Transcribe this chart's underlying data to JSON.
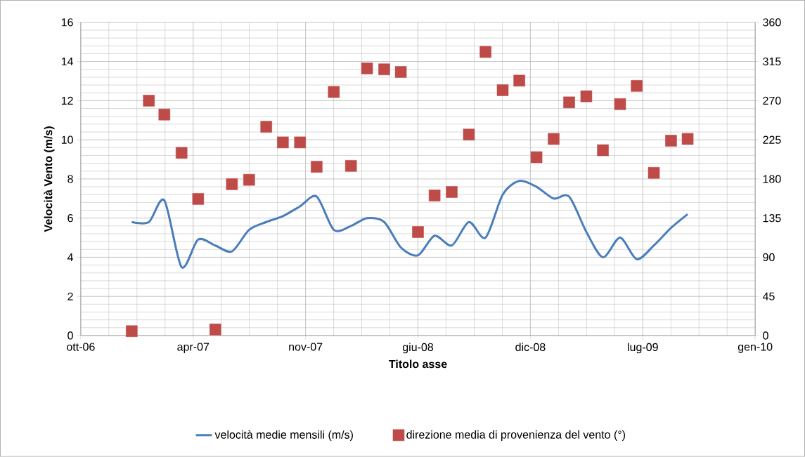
{
  "chart_data": {
    "type": "line",
    "xlabel": "Titolo asse",
    "ylabel": "Velocità Vento (m/s)",
    "x": [
      "2007-01-01",
      "2007-02-01",
      "2007-03-01",
      "2007-04-01",
      "2007-05-01",
      "2007-06-01",
      "2007-07-01",
      "2007-08-01",
      "2007-09-01",
      "2007-10-01",
      "2007-11-01",
      "2007-12-01",
      "2008-01-01",
      "2008-02-01",
      "2008-03-01",
      "2008-04-01",
      "2008-05-01",
      "2008-06-01",
      "2008-07-01",
      "2008-08-01",
      "2008-09-01",
      "2008-10-01",
      "2008-11-01",
      "2008-12-01",
      "2009-01-01",
      "2009-02-01",
      "2009-03-01",
      "2009-04-01",
      "2009-05-01",
      "2009-06-01",
      "2009-07-01",
      "2009-08-01",
      "2009-09-01",
      "2009-10-01"
    ],
    "series": [
      {
        "name": "velocità medie mensili (m/s)",
        "color": "#4a7ebb",
        "marker": "none",
        "values": [
          5.8,
          5.8,
          6.9,
          3.5,
          4.9,
          4.6,
          4.3,
          5.4,
          5.8,
          6.1,
          6.6,
          7.1,
          5.4,
          5.6,
          6.0,
          5.8,
          4.5,
          4.1,
          5.1,
          4.6,
          5.8,
          5.0,
          7.2,
          7.9,
          7.6,
          7.0,
          7.1,
          5.3,
          4.0,
          5.0,
          3.9,
          4.6,
          5.5,
          6.2
        ]
      },
      {
        "name": "direzione media di provenienza del vento (°)",
        "type": "scatter",
        "axis": "y2",
        "color": "#be4b48",
        "marker": "square",
        "values": [
          5,
          270,
          254,
          210,
          157,
          7,
          174,
          179,
          240,
          222,
          222,
          194,
          280,
          195,
          307,
          306,
          303,
          119,
          161,
          165,
          231,
          326,
          282,
          293,
          205,
          226,
          268,
          275,
          213,
          266,
          287,
          187,
          224,
          226
        ]
      }
    ],
    "xlim": [
      "2006-10-01",
      "2010-01-31"
    ],
    "xticks": [
      {
        "value": "2006-10-01",
        "label": "ott-06"
      },
      {
        "value": "2007-04-22",
        "label": "apr-07"
      },
      {
        "value": "2007-11-11",
        "label": "nov-07"
      },
      {
        "value": "2008-06-01",
        "label": "giu-08"
      },
      {
        "value": "2008-12-21",
        "label": "dic-08"
      },
      {
        "value": "2009-07-12",
        "label": "lug-09"
      },
      {
        "value": "2010-01-31",
        "label": "gen-10"
      }
    ],
    "ylim": [
      0,
      16
    ],
    "yticks": [
      0,
      2,
      4,
      6,
      8,
      10,
      12,
      14,
      16
    ],
    "y2lim": [
      0,
      360
    ],
    "y2ticks": [
      0,
      45,
      90,
      135,
      180,
      225,
      270,
      315,
      360
    ],
    "grid": true,
    "legend": "bottom"
  }
}
